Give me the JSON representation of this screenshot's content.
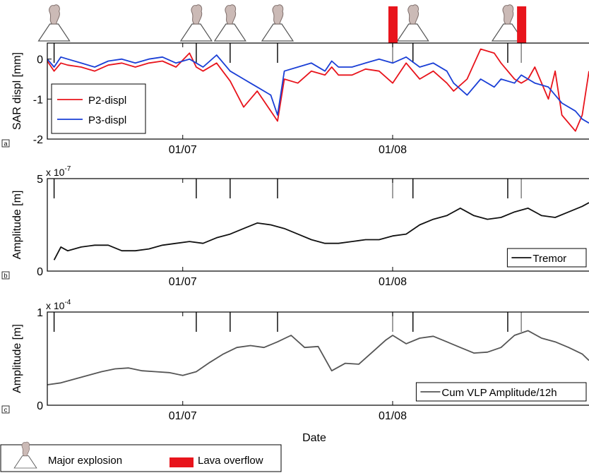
{
  "figure": {
    "xlabel": "Date",
    "x_ticks": [
      "01/07",
      "01/08"
    ]
  },
  "chart_data": [
    {
      "type": "line",
      "panel": "a",
      "ylabel": "SAR displ [mm]",
      "ylim": [
        -2,
        0.4
      ],
      "y_ticks": [
        0,
        -1,
        -2
      ],
      "y_tick_labels": [
        "0",
        "-1",
        "-2"
      ],
      "xlim": [
        "2007-06-11",
        "2007-08-30"
      ],
      "x_ticks": [
        "2007-07-01",
        "2007-08-01"
      ],
      "legend": "bottom-left",
      "series": [
        {
          "name": "P2-displ",
          "color": "#e8141c",
          "x": [
            "2007-06-11",
            "2007-06-12",
            "2007-06-13",
            "2007-06-14",
            "2007-06-16",
            "2007-06-18",
            "2007-06-20",
            "2007-06-22",
            "2007-06-24",
            "2007-06-26",
            "2007-06-28",
            "2007-06-30",
            "2007-07-02",
            "2007-07-03",
            "2007-07-04",
            "2007-07-06",
            "2007-07-08",
            "2007-07-10",
            "2007-07-11",
            "2007-07-12",
            "2007-07-14",
            "2007-07-15",
            "2007-07-16",
            "2007-07-18",
            "2007-07-20",
            "2007-07-22",
            "2007-07-23",
            "2007-07-24",
            "2007-07-26",
            "2007-07-28",
            "2007-07-30",
            "2007-08-01",
            "2007-08-03",
            "2007-08-05",
            "2007-08-07",
            "2007-08-09",
            "2007-08-10",
            "2007-08-12",
            "2007-08-14",
            "2007-08-16",
            "2007-08-17",
            "2007-08-19",
            "2007-08-20",
            "2007-08-21",
            "2007-08-22",
            "2007-08-24",
            "2007-08-25",
            "2007-08-26",
            "2007-08-28",
            "2007-08-29",
            "2007-08-30"
          ],
          "values": [
            -0.05,
            -0.3,
            -0.1,
            -0.15,
            -0.2,
            -0.3,
            -0.15,
            -0.1,
            -0.2,
            -0.1,
            -0.05,
            -0.2,
            0.15,
            -0.2,
            -0.3,
            -0.1,
            -0.55,
            -1.2,
            -1.0,
            -0.8,
            -1.3,
            -1.55,
            -0.5,
            -0.6,
            -0.3,
            -0.4,
            -0.2,
            -0.4,
            -0.4,
            -0.25,
            -0.3,
            -0.6,
            -0.1,
            -0.5,
            -0.3,
            -0.6,
            -0.8,
            -0.5,
            0.25,
            0.15,
            -0.1,
            -0.5,
            -0.6,
            -0.5,
            -0.2,
            -1.0,
            -0.3,
            -1.4,
            -1.8,
            -1.4,
            -0.3
          ]
        },
        {
          "name": "P3-displ",
          "color": "#1a3fd6",
          "x": [
            "2007-06-11",
            "2007-06-12",
            "2007-06-13",
            "2007-06-14",
            "2007-06-16",
            "2007-06-18",
            "2007-06-20",
            "2007-06-22",
            "2007-06-24",
            "2007-06-26",
            "2007-06-28",
            "2007-06-30",
            "2007-07-02",
            "2007-07-03",
            "2007-07-04",
            "2007-07-06",
            "2007-07-08",
            "2007-07-10",
            "2007-07-11",
            "2007-07-12",
            "2007-07-14",
            "2007-07-15",
            "2007-07-16",
            "2007-07-18",
            "2007-07-20",
            "2007-07-22",
            "2007-07-23",
            "2007-07-24",
            "2007-07-26",
            "2007-07-28",
            "2007-07-30",
            "2007-08-01",
            "2007-08-03",
            "2007-08-05",
            "2007-08-07",
            "2007-08-09",
            "2007-08-10",
            "2007-08-12",
            "2007-08-14",
            "2007-08-16",
            "2007-08-17",
            "2007-08-19",
            "2007-08-20",
            "2007-08-21",
            "2007-08-22",
            "2007-08-24",
            "2007-08-25",
            "2007-08-26",
            "2007-08-28",
            "2007-08-29",
            "2007-08-30"
          ],
          "values": [
            0.0,
            -0.2,
            0.05,
            0.0,
            -0.1,
            -0.2,
            -0.05,
            0.0,
            -0.1,
            0.0,
            0.05,
            -0.1,
            0.0,
            -0.1,
            -0.2,
            0.1,
            -0.3,
            -0.5,
            -0.6,
            -0.7,
            -0.9,
            -1.4,
            -0.3,
            -0.2,
            -0.1,
            -0.3,
            -0.05,
            -0.2,
            -0.2,
            -0.1,
            0.0,
            -0.1,
            0.05,
            -0.2,
            -0.1,
            -0.3,
            -0.6,
            -0.9,
            -0.5,
            -0.7,
            -0.5,
            -0.6,
            -0.4,
            -0.5,
            -0.6,
            -0.7,
            -0.9,
            -1.1,
            -1.3,
            -1.5,
            -1.6
          ]
        }
      ]
    },
    {
      "type": "line",
      "panel": "b",
      "ylabel": "Amplitude [m]",
      "scale_label_base": "x 10",
      "scale_label_exp": "-7",
      "ylim": [
        0,
        5
      ],
      "y_ticks": [
        0,
        5
      ],
      "y_tick_labels": [
        "0",
        "5"
      ],
      "xlim": [
        "2007-06-11",
        "2007-08-30"
      ],
      "x_ticks": [
        "2007-07-01",
        "2007-08-01"
      ],
      "legend": "bottom-right",
      "series": [
        {
          "name": "Tremor",
          "color": "#111111",
          "x": [
            "2007-06-12",
            "2007-06-13",
            "2007-06-14",
            "2007-06-16",
            "2007-06-18",
            "2007-06-20",
            "2007-06-22",
            "2007-06-24",
            "2007-06-26",
            "2007-06-28",
            "2007-06-30",
            "2007-07-02",
            "2007-07-04",
            "2007-07-06",
            "2007-07-08",
            "2007-07-10",
            "2007-07-12",
            "2007-07-14",
            "2007-07-16",
            "2007-07-18",
            "2007-07-20",
            "2007-07-22",
            "2007-07-24",
            "2007-07-26",
            "2007-07-28",
            "2007-07-30",
            "2007-08-01",
            "2007-08-03",
            "2007-08-05",
            "2007-08-07",
            "2007-08-09",
            "2007-08-11",
            "2007-08-13",
            "2007-08-15",
            "2007-08-17",
            "2007-08-19",
            "2007-08-21",
            "2007-08-23",
            "2007-08-25",
            "2007-08-27",
            "2007-08-29",
            "2007-08-30"
          ],
          "values": [
            0.6,
            1.3,
            1.1,
            1.3,
            1.4,
            1.4,
            1.1,
            1.1,
            1.2,
            1.4,
            1.5,
            1.6,
            1.5,
            1.8,
            2.0,
            2.3,
            2.6,
            2.5,
            2.3,
            2.0,
            1.7,
            1.5,
            1.5,
            1.6,
            1.7,
            1.7,
            1.9,
            2.0,
            2.5,
            2.8,
            3.0,
            3.4,
            3.0,
            2.8,
            2.9,
            3.2,
            3.4,
            3.0,
            2.9,
            3.2,
            3.5,
            3.7
          ]
        }
      ]
    },
    {
      "type": "line",
      "panel": "c",
      "ylabel": "Amplitude [m]",
      "scale_label_base": "x 10",
      "scale_label_exp": "-4",
      "ylim": [
        0,
        1
      ],
      "y_ticks": [
        0,
        1
      ],
      "y_tick_labels": [
        "0",
        "1"
      ],
      "xlim": [
        "2007-06-11",
        "2007-08-30"
      ],
      "x_ticks": [
        "2007-07-01",
        "2007-08-01"
      ],
      "legend": "bottom-right",
      "series": [
        {
          "name": "Cum VLP Amplitude/12h",
          "color": "#555555",
          "x": [
            "2007-06-11",
            "2007-06-13",
            "2007-06-15",
            "2007-06-17",
            "2007-06-19",
            "2007-06-21",
            "2007-06-23",
            "2007-06-25",
            "2007-06-27",
            "2007-06-29",
            "2007-07-01",
            "2007-07-03",
            "2007-07-05",
            "2007-07-07",
            "2007-07-09",
            "2007-07-11",
            "2007-07-13",
            "2007-07-15",
            "2007-07-17",
            "2007-07-19",
            "2007-07-21",
            "2007-07-23",
            "2007-07-25",
            "2007-07-27",
            "2007-07-29",
            "2007-07-31",
            "2007-08-01",
            "2007-08-03",
            "2007-08-05",
            "2007-08-07",
            "2007-08-09",
            "2007-08-11",
            "2007-08-13",
            "2007-08-15",
            "2007-08-17",
            "2007-08-19",
            "2007-08-21",
            "2007-08-23",
            "2007-08-25",
            "2007-08-27",
            "2007-08-29",
            "2007-08-30"
          ],
          "values": [
            0.22,
            0.24,
            0.28,
            0.32,
            0.36,
            0.39,
            0.4,
            0.37,
            0.36,
            0.35,
            0.32,
            0.36,
            0.46,
            0.55,
            0.62,
            0.64,
            0.62,
            0.68,
            0.75,
            0.62,
            0.63,
            0.37,
            0.45,
            0.44,
            0.57,
            0.7,
            0.75,
            0.66,
            0.72,
            0.74,
            0.68,
            0.62,
            0.56,
            0.57,
            0.62,
            0.75,
            0.8,
            0.72,
            0.68,
            0.62,
            0.55,
            0.48
          ]
        }
      ]
    }
  ],
  "events": {
    "major_explosions": [
      "2007-06-12",
      "2007-07-03",
      "2007-07-08",
      "2007-07-15",
      "2007-08-04",
      "2007-08-18"
    ],
    "lava_overflows": [
      "2007-08-01",
      "2007-08-20"
    ]
  },
  "legend_bottom": {
    "explosion_label": "Major explosion",
    "lava_label": "Lava overflow",
    "lava_color": "#e8141c"
  }
}
